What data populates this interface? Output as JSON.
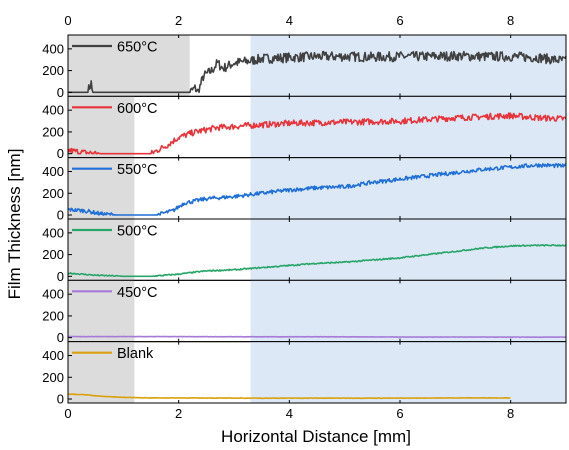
{
  "chart_data": {
    "type": "line",
    "title": "",
    "xlabel": "Horizontal Distance [mm]",
    "ylabel": "Film Thickness [nm]",
    "xlim": [
      0,
      9
    ],
    "ylim": [
      0,
      500
    ],
    "x_ticks": [
      0,
      2,
      4,
      6,
      8
    ],
    "y_ticks": [
      0,
      200,
      400
    ],
    "shaded_regions": [
      {
        "color": "#dcdcdc",
        "note": "gray band, width varies per panel (x from 0)"
      },
      {
        "color": "#dce8f5",
        "x_range": [
          3.3,
          9
        ],
        "note": "blue band, all panels"
      }
    ],
    "panels": [
      {
        "name": "650°C",
        "color": "#404040",
        "gray_band": [
          0,
          2.2
        ],
        "points": [
          [
            0,
            0
          ],
          [
            0.35,
            0
          ],
          [
            0.42,
            85
          ],
          [
            0.44,
            0
          ],
          [
            1.5,
            0
          ],
          [
            2.2,
            0
          ],
          [
            2.3,
            40
          ],
          [
            2.35,
            0
          ],
          [
            2.45,
            150
          ],
          [
            2.6,
            200
          ],
          [
            2.7,
            270
          ],
          [
            2.8,
            220
          ],
          [
            3.0,
            270
          ],
          [
            3.3,
            290
          ],
          [
            3.5,
            310
          ],
          [
            4,
            320
          ],
          [
            4.5,
            330
          ],
          [
            5,
            330
          ],
          [
            5.5,
            325
          ],
          [
            6,
            330
          ],
          [
            6.5,
            330
          ],
          [
            7,
            335
          ],
          [
            7.5,
            330
          ],
          [
            8,
            330
          ],
          [
            8.5,
            320
          ],
          [
            8.8,
            300
          ],
          [
            9,
            290
          ]
        ],
        "noise": 45
      },
      {
        "name": "600°C",
        "color": "#e8333a",
        "gray_band": [
          0,
          1.2
        ],
        "points": [
          [
            0,
            30
          ],
          [
            0.3,
            10
          ],
          [
            0.6,
            0
          ],
          [
            1.2,
            0
          ],
          [
            1.5,
            0
          ],
          [
            1.8,
            80
          ],
          [
            2.0,
            150
          ],
          [
            2.3,
            200
          ],
          [
            2.7,
            240
          ],
          [
            3,
            250
          ],
          [
            3.3,
            260
          ],
          [
            4,
            280
          ],
          [
            5,
            290
          ],
          [
            6,
            300
          ],
          [
            7,
            330
          ],
          [
            7.5,
            340
          ],
          [
            8,
            350
          ],
          [
            8.5,
            330
          ],
          [
            9,
            320
          ]
        ],
        "noise": 28
      },
      {
        "name": "550°C",
        "color": "#1f6fd6",
        "gray_band": [
          0,
          1.2
        ],
        "points": [
          [
            0,
            50
          ],
          [
            0.3,
            40
          ],
          [
            0.6,
            10
          ],
          [
            0.9,
            0
          ],
          [
            1.2,
            0
          ],
          [
            1.6,
            0
          ],
          [
            1.9,
            40
          ],
          [
            2.1,
            110
          ],
          [
            2.5,
            150
          ],
          [
            3,
            170
          ],
          [
            3.5,
            200
          ],
          [
            4,
            230
          ],
          [
            4.5,
            250
          ],
          [
            5,
            260
          ],
          [
            5.5,
            300
          ],
          [
            6,
            330
          ],
          [
            6.5,
            360
          ],
          [
            7,
            390
          ],
          [
            7.5,
            420
          ],
          [
            8,
            440
          ],
          [
            8.5,
            460
          ],
          [
            9,
            450
          ]
        ],
        "noise": 18
      },
      {
        "name": "500°C",
        "color": "#2aa56a",
        "gray_band": [
          0,
          1.2
        ],
        "points": [
          [
            0,
            30
          ],
          [
            0.5,
            10
          ],
          [
            1,
            0
          ],
          [
            1.5,
            0
          ],
          [
            2,
            20
          ],
          [
            2.5,
            50
          ],
          [
            3,
            60
          ],
          [
            3.5,
            80
          ],
          [
            4,
            100
          ],
          [
            4.5,
            120
          ],
          [
            5,
            130
          ],
          [
            5.5,
            150
          ],
          [
            6,
            170
          ],
          [
            6.5,
            200
          ],
          [
            7,
            230
          ],
          [
            7.5,
            260
          ],
          [
            8,
            280
          ],
          [
            8.5,
            285
          ],
          [
            9,
            285
          ]
        ],
        "noise": 6
      },
      {
        "name": "450°C",
        "color": "#a67ad8",
        "gray_band": [
          0,
          1.2
        ],
        "points": [
          [
            0,
            10
          ],
          [
            1,
            10
          ],
          [
            2,
            10
          ],
          [
            3,
            8
          ],
          [
            4,
            8
          ],
          [
            5,
            8
          ],
          [
            6,
            6
          ],
          [
            7,
            6
          ],
          [
            8,
            5
          ],
          [
            9,
            5
          ]
        ],
        "noise": 1.5
      },
      {
        "name": "Blank",
        "color": "#d9a10e",
        "gray_band": [
          0,
          1.2
        ],
        "points": [
          [
            0,
            45
          ],
          [
            0.3,
            40
          ],
          [
            0.6,
            25
          ],
          [
            1,
            15
          ],
          [
            1.5,
            10
          ],
          [
            2,
            10
          ],
          [
            3,
            8
          ],
          [
            4,
            8
          ],
          [
            5,
            8
          ],
          [
            6,
            8
          ],
          [
            7,
            10
          ],
          [
            8,
            10
          ]
        ],
        "noise": 2
      }
    ]
  }
}
